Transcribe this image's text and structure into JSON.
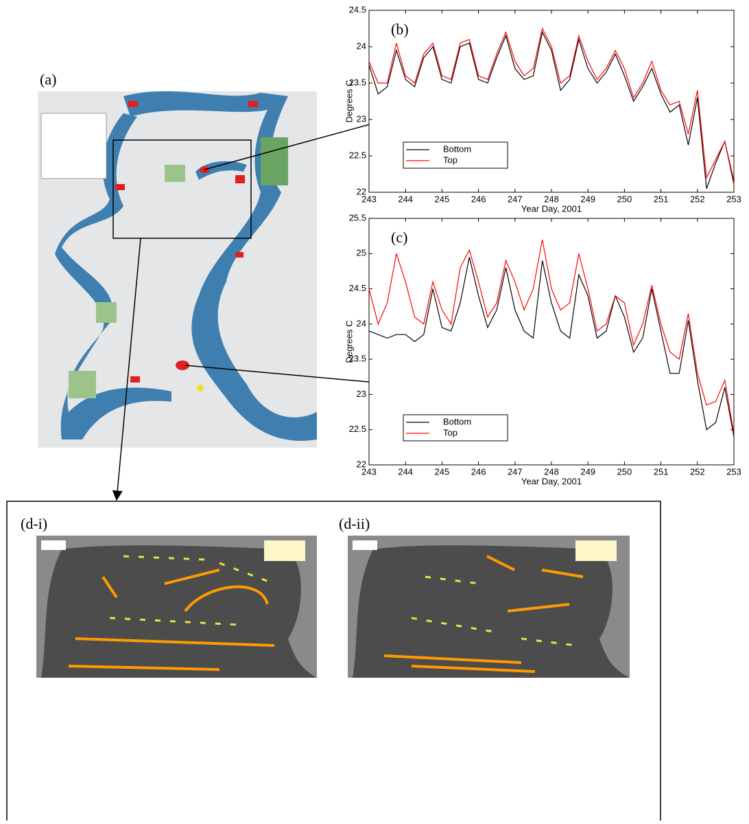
{
  "panels": {
    "a": "(a)",
    "d_i": "(d-i)",
    "d_ii": "(d-ii)"
  },
  "chart_data": [
    {
      "type": "line",
      "annotation": "(b)",
      "y_label": "Degrees C",
      "x_label": "Year Day, 2001",
      "x": [
        243,
        243.25,
        243.5,
        243.75,
        244,
        244.25,
        244.5,
        244.75,
        245,
        245.25,
        245.5,
        245.75,
        246,
        246.25,
        246.5,
        246.75,
        247,
        247.25,
        247.5,
        247.75,
        248,
        248.25,
        248.5,
        248.75,
        249,
        249.25,
        249.5,
        249.75,
        250,
        250.25,
        250.5,
        250.75,
        251,
        251.25,
        251.5,
        251.75,
        252,
        252.25,
        252.5,
        252.75,
        253
      ],
      "series": [
        {
          "name": "Bottom",
          "color": "#000000",
          "values": [
            23.75,
            23.35,
            23.45,
            23.95,
            23.55,
            23.45,
            23.85,
            24.0,
            23.55,
            23.5,
            24.0,
            24.05,
            23.55,
            23.5,
            23.85,
            24.15,
            23.7,
            23.55,
            23.6,
            24.2,
            23.95,
            23.4,
            23.55,
            24.1,
            23.7,
            23.5,
            23.65,
            23.9,
            23.6,
            23.25,
            23.45,
            23.7,
            23.35,
            23.1,
            23.2,
            22.65,
            23.3,
            22.05,
            22.4,
            22.7,
            22.15
          ]
        },
        {
          "name": "Top",
          "color": "#ff0000",
          "values": [
            23.8,
            23.5,
            23.5,
            24.05,
            23.6,
            23.5,
            23.9,
            24.05,
            23.6,
            23.55,
            24.05,
            24.1,
            23.6,
            23.55,
            23.9,
            24.2,
            23.8,
            23.6,
            23.7,
            24.25,
            24.0,
            23.5,
            23.6,
            24.15,
            23.8,
            23.55,
            23.7,
            23.95,
            23.7,
            23.3,
            23.5,
            23.8,
            23.4,
            23.2,
            23.25,
            22.8,
            23.4,
            22.2,
            22.45,
            22.7,
            22.1
          ]
        }
      ],
      "xlim": [
        243,
        253
      ],
      "xticks": [
        243,
        244,
        245,
        246,
        247,
        248,
        249,
        250,
        251,
        252,
        253
      ],
      "ylim": [
        22,
        24.5
      ],
      "yticks": [
        22,
        22.5,
        23,
        23.5,
        24,
        24.5
      ],
      "legend": "lower left",
      "grid": false
    },
    {
      "type": "line",
      "annotation": "(c)",
      "y_label": "Degrees C",
      "x_label": "Year Day, 2001",
      "x": [
        243,
        243.25,
        243.5,
        243.75,
        244,
        244.25,
        244.5,
        244.75,
        245,
        245.25,
        245.5,
        245.75,
        246,
        246.25,
        246.5,
        246.75,
        247,
        247.25,
        247.5,
        247.75,
        248,
        248.25,
        248.5,
        248.75,
        249,
        249.25,
        249.5,
        249.75,
        250,
        250.25,
        250.5,
        250.75,
        251,
        251.25,
        251.5,
        251.75,
        252,
        252.25,
        252.5,
        252.75,
        253
      ],
      "series": [
        {
          "name": "Bottom",
          "color": "#000000",
          "values": [
            23.9,
            23.85,
            23.8,
            23.85,
            23.85,
            23.75,
            23.85,
            24.5,
            23.95,
            23.9,
            24.3,
            24.95,
            24.4,
            23.95,
            24.2,
            24.8,
            24.2,
            23.9,
            23.8,
            24.9,
            24.3,
            23.9,
            23.8,
            24.7,
            24.4,
            23.8,
            23.9,
            24.4,
            24.1,
            23.6,
            23.8,
            24.5,
            23.9,
            23.3,
            23.3,
            24.05,
            23.2,
            22.5,
            22.6,
            23.1,
            22.4
          ]
        },
        {
          "name": "Top",
          "color": "#ff0000",
          "values": [
            24.5,
            24.0,
            24.3,
            25.0,
            24.6,
            24.1,
            24.0,
            24.6,
            24.2,
            24.0,
            24.8,
            25.05,
            24.6,
            24.1,
            24.3,
            24.9,
            24.6,
            24.2,
            24.5,
            25.2,
            24.5,
            24.2,
            24.3,
            25.0,
            24.5,
            23.9,
            24.0,
            24.4,
            24.3,
            23.7,
            24.0,
            24.55,
            24.0,
            23.6,
            23.5,
            24.15,
            23.3,
            22.85,
            22.9,
            23.2,
            22.45
          ]
        }
      ],
      "xlim": [
        243,
        253
      ],
      "xticks": [
        243,
        244,
        245,
        246,
        247,
        248,
        249,
        250,
        251,
        252,
        253
      ],
      "ylim": [
        22,
        25.5
      ],
      "yticks": [
        22,
        22.5,
        23,
        23.5,
        24,
        24.5,
        25,
        25.5
      ],
      "legend": "lower left",
      "grid": false
    }
  ]
}
